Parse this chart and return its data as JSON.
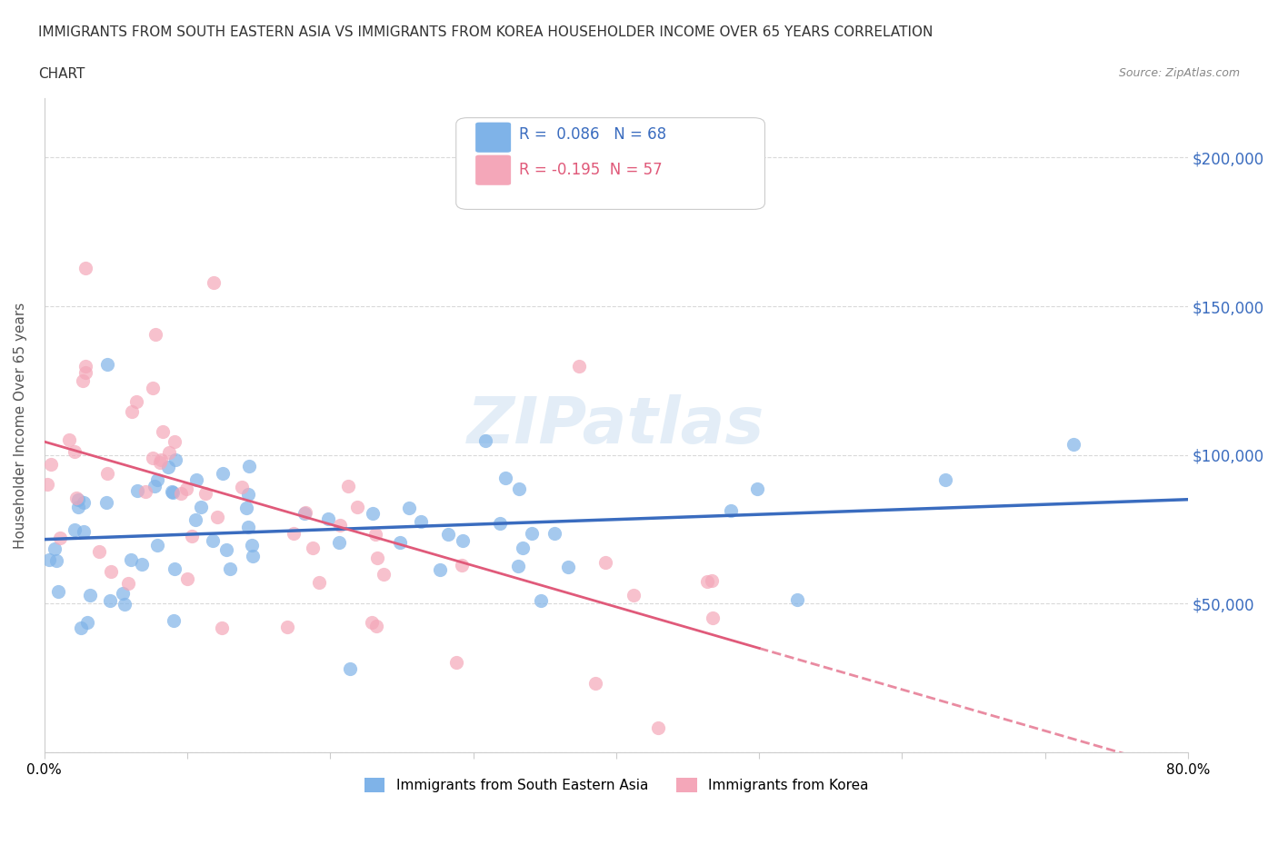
{
  "title_line1": "IMMIGRANTS FROM SOUTH EASTERN ASIA VS IMMIGRANTS FROM KOREA HOUSEHOLDER INCOME OVER 65 YEARS CORRELATION",
  "title_line2": "CHART",
  "source": "Source: ZipAtlas.com",
  "ylabel": "Householder Income Over 65 years",
  "xlim": [
    0.0,
    0.8
  ],
  "ylim": [
    0,
    220000
  ],
  "color_sea": "#7fb3e8",
  "color_korea": "#f4a7b9",
  "line_color_sea": "#3a6cbf",
  "line_color_korea": "#e05a7a",
  "background_color": "#ffffff",
  "grid_color": "#d0d0d0"
}
